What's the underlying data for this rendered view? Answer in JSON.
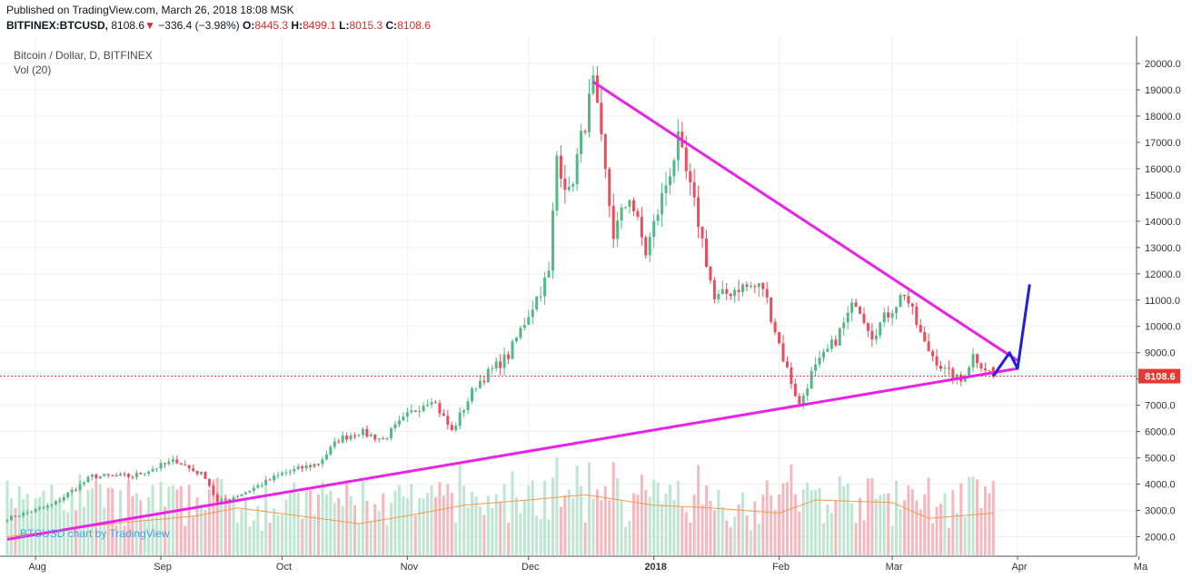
{
  "header": {
    "published": "Published on TradingView.com, March 26, 2018 18:08 MSK",
    "symbol": "BITFINEX:BTCUSD,",
    "price": "8108.6",
    "down_arrow": "▼",
    "change": "−336.4 (−3.98%)",
    "o_label": "O:",
    "o_value": "8445.3",
    "h_label": "H:",
    "h_value": "8499.1",
    "l_label": "L:",
    "l_value": "8015.3",
    "c_label": "C:",
    "c_value": "8108.6"
  },
  "legend": {
    "title": "Bitcoin / Dollar, D, BITFINEX",
    "volume": "Vol (20)"
  },
  "watermark": "BTCUSD chart by TradingView",
  "chart_data": {
    "type": "candlestick",
    "ylim": [
      1300,
      20400
    ],
    "y_ticks": [
      "2000.0",
      "3000.0",
      "4000.0",
      "5000.0",
      "6000.0",
      "7000.0",
      "8000.0",
      "9000.0",
      "10000.0",
      "11000.0",
      "12000.0",
      "13000.0",
      "14000.0",
      "15000.0",
      "16000.0",
      "17000.0",
      "18000.0",
      "19000.0",
      "20000.0"
    ],
    "x_ticks": [
      "Aug",
      "Sep",
      "Oct",
      "Nov",
      "Dec",
      "2018",
      "Feb",
      "Mar",
      "Apr",
      "Ma"
    ],
    "last_price_label": "8108.6",
    "colors": {
      "up": "#53b987",
      "down": "#eb4d5c",
      "trendline": "#ea22e8",
      "projection": "#1f1fe0",
      "vol_ma": "#f59a4a",
      "last_price": "#e53935"
    },
    "price_path": [
      [
        "2017-07-25",
        2700
      ],
      [
        "2017-08-05",
        3200
      ],
      [
        "2017-08-15",
        4300
      ],
      [
        "2017-08-25",
        4300
      ],
      [
        "2017-09-01",
        4700
      ],
      [
        "2017-09-05",
        4900
      ],
      [
        "2017-09-08",
        4600
      ],
      [
        "2017-09-12",
        4300
      ],
      [
        "2017-09-15",
        3300
      ],
      [
        "2017-09-22",
        3700
      ],
      [
        "2017-10-01",
        4400
      ],
      [
        "2017-10-10",
        4800
      ],
      [
        "2017-10-15",
        5700
      ],
      [
        "2017-10-20",
        6000
      ],
      [
        "2017-10-26",
        5700
      ],
      [
        "2017-11-01",
        6600
      ],
      [
        "2017-11-07",
        7300
      ],
      [
        "2017-11-12",
        6000
      ],
      [
        "2017-11-18",
        7800
      ],
      [
        "2017-11-26",
        8900
      ],
      [
        "2017-12-01",
        10500
      ],
      [
        "2017-12-06",
        12000
      ],
      [
        "2017-12-08",
        16500
      ],
      [
        "2017-12-11",
        15000
      ],
      [
        "2017-12-17",
        19200
      ],
      [
        "2017-12-22",
        13500
      ],
      [
        "2017-12-26",
        15000
      ],
      [
        "2017-12-30",
        12800
      ],
      [
        "2018-01-07",
        17000
      ],
      [
        "2018-01-12",
        14000
      ],
      [
        "2018-01-16",
        11000
      ],
      [
        "2018-01-22",
        11500
      ],
      [
        "2018-01-28",
        11500
      ],
      [
        "2018-02-02",
        8800
      ],
      [
        "2018-02-06",
        7000
      ],
      [
        "2018-02-09",
        8200
      ],
      [
        "2018-02-15",
        9500
      ],
      [
        "2018-02-20",
        11000
      ],
      [
        "2018-02-24",
        9700
      ],
      [
        "2018-03-04",
        11300
      ],
      [
        "2018-03-09",
        9300
      ],
      [
        "2018-03-14",
        8300
      ],
      [
        "2018-03-18",
        7900
      ],
      [
        "2018-03-21",
        8900
      ],
      [
        "2018-03-26",
        8108.6
      ]
    ],
    "volume_ma": [
      [
        "2017-07-25",
        2000
      ],
      [
        "2017-08-20",
        2500
      ],
      [
        "2017-09-10",
        2800
      ],
      [
        "2017-09-20",
        3100
      ],
      [
        "2017-10-10",
        2700
      ],
      [
        "2017-10-20",
        2500
      ],
      [
        "2017-11-01",
        2800
      ],
      [
        "2017-11-15",
        3200
      ],
      [
        "2017-12-01",
        3400
      ],
      [
        "2017-12-15",
        3600
      ],
      [
        "2018-01-01",
        3200
      ],
      [
        "2018-01-15",
        3100
      ],
      [
        "2018-02-01",
        2900
      ],
      [
        "2018-02-10",
        3400
      ],
      [
        "2018-03-01",
        3300
      ],
      [
        "2018-03-10",
        2700
      ],
      [
        "2018-03-26",
        2900
      ]
    ],
    "trendline_upper": [
      [
        "2017-12-17",
        19300
      ],
      [
        "2018-04-01",
        8700
      ]
    ],
    "trendline_lower": [
      [
        "2017-07-25",
        1900
      ],
      [
        "2018-04-01",
        8400
      ]
    ],
    "projection": [
      [
        "2018-03-26",
        8108.6
      ],
      [
        "2018-03-30",
        9000
      ],
      [
        "2018-04-01",
        8400
      ],
      [
        "2018-04-04",
        11600
      ]
    ]
  }
}
